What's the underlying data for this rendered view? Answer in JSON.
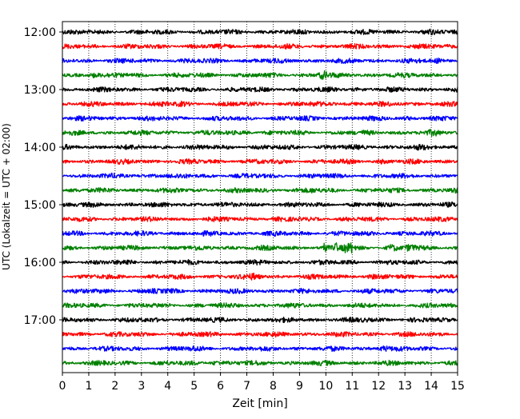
{
  "chart_data": {
    "type": "line",
    "title": "",
    "xlabel": "Zeit  [min]",
    "ylabel": "UTC (Lokalzeit = UTC + 02:00)",
    "xlim": [
      0,
      15
    ],
    "x_ticks": [
      "0",
      "1",
      "2",
      "3",
      "4",
      "5",
      "6",
      "7",
      "8",
      "9",
      "10",
      "11",
      "12",
      "13",
      "14",
      "15"
    ],
    "y_ticks": [
      {
        "label": "12:00",
        "trace": 0
      },
      {
        "label": "13:00",
        "trace": 4
      },
      {
        "label": "14:00",
        "trace": 8
      },
      {
        "label": "15:00",
        "trace": 12
      },
      {
        "label": "16:00",
        "trace": 16
      },
      {
        "label": "17:00",
        "trace": 20
      }
    ],
    "grid": "vertical-dotted",
    "trace_colors": [
      "#000000",
      "#ff0000",
      "#0000ff",
      "#008000"
    ],
    "traces": [
      {
        "start": "12:00",
        "color": "#000000",
        "events": [
          {
            "t": 14.0,
            "amp": 1.4
          }
        ]
      },
      {
        "start": "12:15",
        "color": "#ff0000",
        "events": []
      },
      {
        "start": "12:30",
        "color": "#0000ff",
        "events": [
          {
            "t": 14.3,
            "amp": 1.6
          }
        ]
      },
      {
        "start": "12:45",
        "color": "#008000",
        "events": [
          {
            "t": 1.2,
            "amp": 2.0
          },
          {
            "t": 9.9,
            "amp": 2.6
          }
        ]
      },
      {
        "start": "13:00",
        "color": "#000000",
        "events": [
          {
            "t": 11.2,
            "amp": 1.3
          }
        ]
      },
      {
        "start": "13:15",
        "color": "#ff0000",
        "events": [
          {
            "t": 4.5,
            "amp": 1.6
          },
          {
            "t": 10.2,
            "amp": 1.3
          }
        ]
      },
      {
        "start": "13:30",
        "color": "#0000ff",
        "events": [
          {
            "t": 13.1,
            "amp": 1.4
          }
        ]
      },
      {
        "start": "13:45",
        "color": "#008000",
        "events": [
          {
            "t": 7.0,
            "amp": 1.5
          },
          {
            "t": 14.1,
            "amp": 1.6
          }
        ]
      },
      {
        "start": "14:00",
        "color": "#000000",
        "events": [
          {
            "t": 13.5,
            "amp": 1.3
          }
        ]
      },
      {
        "start": "14:15",
        "color": "#ff0000",
        "events": [
          {
            "t": 12.1,
            "amp": 1.5
          }
        ]
      },
      {
        "start": "14:30",
        "color": "#0000ff",
        "events": [
          {
            "t": 3.5,
            "amp": 1.3
          }
        ]
      },
      {
        "start": "14:45",
        "color": "#008000",
        "events": [
          {
            "t": 9.5,
            "amp": 1.5
          },
          {
            "t": 14.8,
            "amp": 1.4
          }
        ]
      },
      {
        "start": "15:00",
        "color": "#000000",
        "events": [
          {
            "t": 5.2,
            "amp": 1.2
          }
        ]
      },
      {
        "start": "15:15",
        "color": "#ff0000",
        "events": []
      },
      {
        "start": "15:30",
        "color": "#0000ff",
        "events": [
          {
            "t": 12.3,
            "amp": 1.3
          }
        ]
      },
      {
        "start": "15:45",
        "color": "#008000",
        "events": [
          {
            "t": 9.95,
            "amp": 5.5
          },
          {
            "t": 10.4,
            "amp": 3.5
          },
          {
            "t": 10.8,
            "amp": 3.0
          },
          {
            "t": 11.0,
            "amp": 3.2
          },
          {
            "t": 12.5,
            "amp": 2.0
          },
          {
            "t": 13.2,
            "amp": 2.2
          }
        ]
      },
      {
        "start": "16:00",
        "color": "#000000",
        "events": [
          {
            "t": 2.5,
            "amp": 1.5
          }
        ]
      },
      {
        "start": "16:15",
        "color": "#ff0000",
        "events": [
          {
            "t": 7.3,
            "amp": 2.0
          },
          {
            "t": 11.8,
            "amp": 1.3
          }
        ]
      },
      {
        "start": "16:30",
        "color": "#0000ff",
        "events": [
          {
            "t": 3.5,
            "amp": 1.5
          }
        ]
      },
      {
        "start": "16:45",
        "color": "#008000",
        "events": []
      },
      {
        "start": "17:00",
        "color": "#000000",
        "events": [
          {
            "t": 11.5,
            "amp": 1.4
          }
        ]
      },
      {
        "start": "17:15",
        "color": "#ff0000",
        "events": [
          {
            "t": 2.0,
            "amp": 1.2
          }
        ]
      },
      {
        "start": "17:30",
        "color": "#0000ff",
        "events": [
          {
            "t": 12.2,
            "amp": 2.0
          },
          {
            "t": 5.0,
            "amp": 1.5
          }
        ]
      },
      {
        "start": "17:45",
        "color": "#008000",
        "events": [
          {
            "t": 5.8,
            "amp": 1.8
          }
        ]
      }
    ]
  }
}
